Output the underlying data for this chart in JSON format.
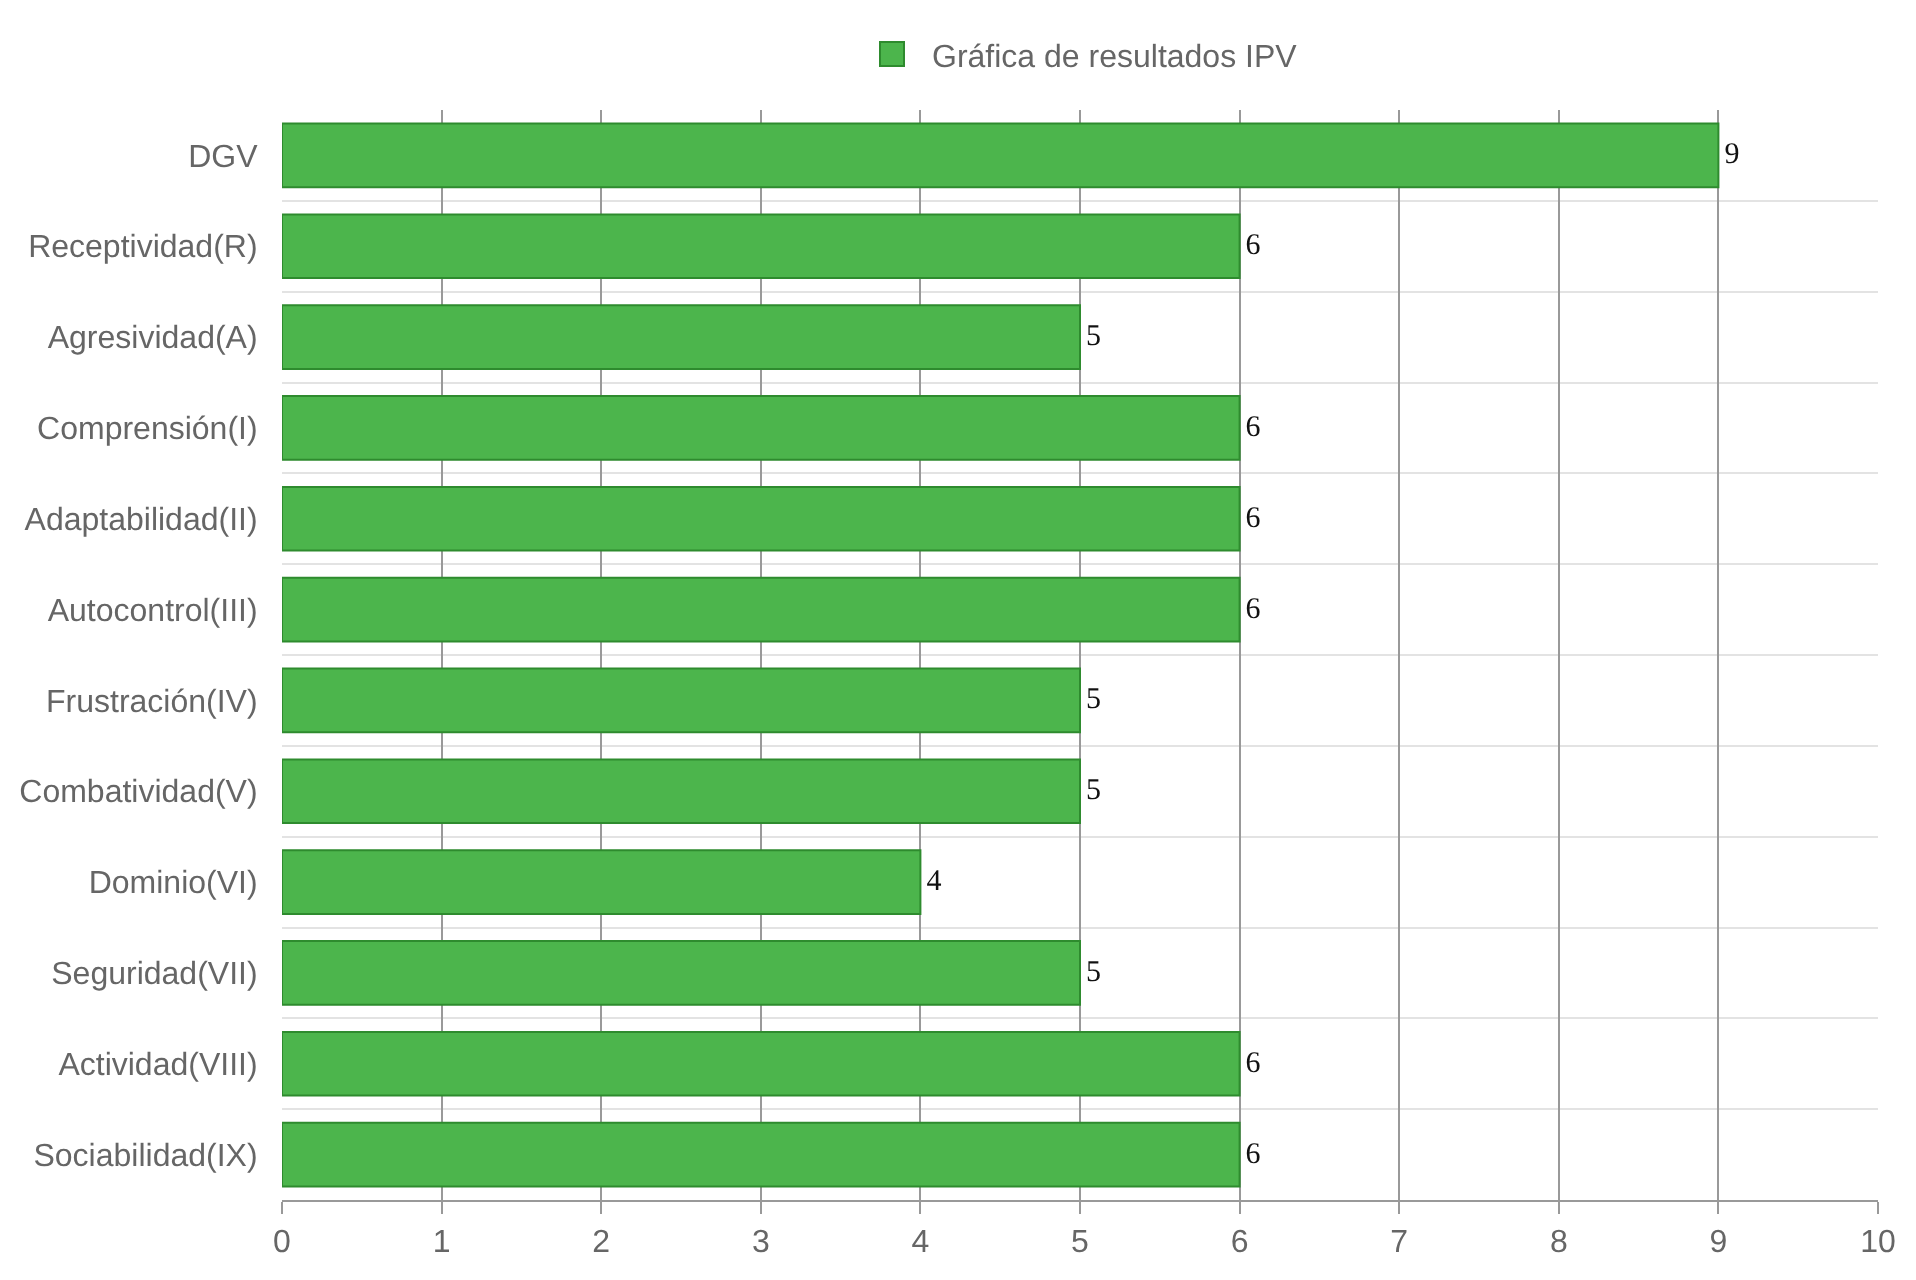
{
  "chart_data": {
    "type": "bar",
    "orientation": "horizontal",
    "categories": [
      "DGV",
      "Receptividad(R)",
      "Agresividad(A)",
      "Comprensión(I)",
      "Adaptabilidad(II)",
      "Autocontrol(III)",
      "Frustración(IV)",
      "Combatividad(V)",
      "Dominio(VI)",
      "Seguridad(VII)",
      "Actividad(VIII)",
      "Sociabilidad(IX)"
    ],
    "series": [
      {
        "name": "Gráfica de resultados IPV",
        "color": "#4cb54c",
        "values": [
          9,
          6,
          5,
          6,
          6,
          6,
          5,
          5,
          4,
          5,
          6,
          6
        ]
      }
    ],
    "xlim": [
      0,
      10
    ],
    "xticks": [
      0,
      1,
      2,
      3,
      4,
      5,
      6,
      7,
      8,
      9,
      10
    ],
    "data_labels": true,
    "grid": true,
    "legend": "top"
  }
}
